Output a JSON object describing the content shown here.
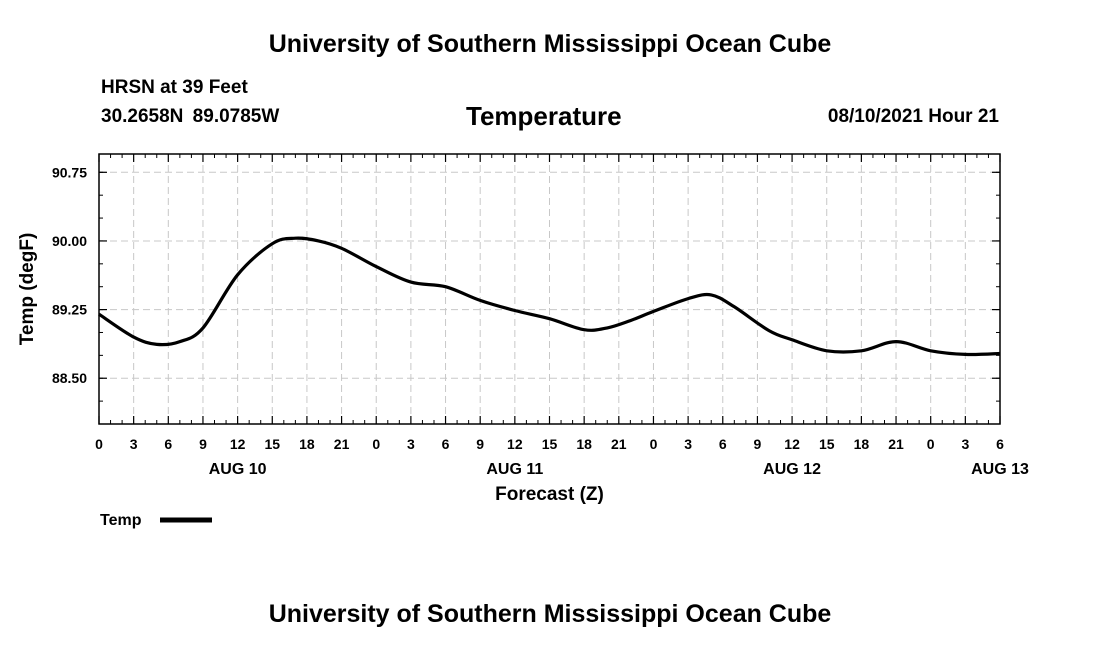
{
  "header": {
    "title": "University of Southern Mississippi Ocean Cube",
    "station": "HRSN at 39 Feet",
    "coords": "30.2658N  89.0785W",
    "variable": "Temperature",
    "timestamp": "08/10/2021 Hour 21"
  },
  "footer": {
    "title": "University of Southern Mississippi Ocean Cube"
  },
  "colors": {
    "line": "#000000",
    "grid": "#c8c8c8",
    "background": "#ffffff"
  },
  "chart_data": {
    "type": "line",
    "title": "Temperature",
    "xlabel": "Forecast (Z)",
    "ylabel": "Temp (degF)",
    "xlim": [
      0,
      78
    ],
    "ylim": [
      88.0,
      90.95
    ],
    "grid": true,
    "x_tick_labels": [
      "0",
      "3",
      "6",
      "9",
      "12",
      "15",
      "18",
      "21",
      "0",
      "3",
      "6",
      "9",
      "12",
      "15",
      "18",
      "21",
      "0",
      "3",
      "6",
      "9",
      "12",
      "15",
      "18",
      "21",
      "0",
      "3",
      "6"
    ],
    "y_ticks": [
      88.5,
      89.25,
      90.0,
      90.75
    ],
    "y_tick_labels": [
      "88.50",
      "89.25",
      "90.00",
      "90.75"
    ],
    "date_labels": [
      {
        "label": "AUG 10",
        "hour": 12
      },
      {
        "label": "AUG 11",
        "hour": 36
      },
      {
        "label": "AUG 12",
        "hour": 60
      },
      {
        "label": "AUG 13",
        "hour": 78
      }
    ],
    "legend": {
      "label": "Temp",
      "placement": "bottom-left"
    },
    "series": [
      {
        "name": "Temp",
        "x": [
          0,
          3,
          5,
          7,
          9,
          12,
          15,
          17,
          19,
          21,
          24,
          27,
          30,
          33,
          36,
          39,
          42,
          44,
          46,
          48,
          51,
          53,
          55,
          58,
          60,
          63,
          66,
          69,
          72,
          75,
          78
        ],
        "values": [
          89.2,
          88.95,
          88.87,
          88.9,
          89.05,
          89.63,
          89.97,
          90.03,
          90.0,
          89.92,
          89.72,
          89.55,
          89.5,
          89.35,
          89.24,
          89.15,
          89.03,
          89.05,
          89.13,
          89.23,
          89.37,
          89.41,
          89.28,
          89.02,
          88.92,
          88.8,
          88.8,
          88.9,
          88.8,
          88.76,
          88.77
        ]
      }
    ]
  }
}
